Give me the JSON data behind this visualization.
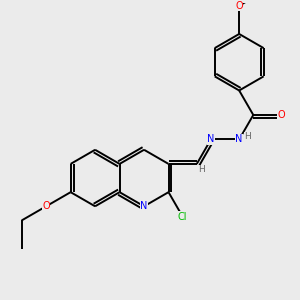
{
  "background_color": "#ebebeb",
  "bond_color": "#000000",
  "N_color": "#0000ff",
  "O_color": "#ff0000",
  "Cl_color": "#00bb00",
  "H_color": "#666666",
  "lw": 1.4,
  "fs": 7.0,
  "xlim": [
    0,
    10
  ],
  "ylim": [
    0,
    10
  ]
}
